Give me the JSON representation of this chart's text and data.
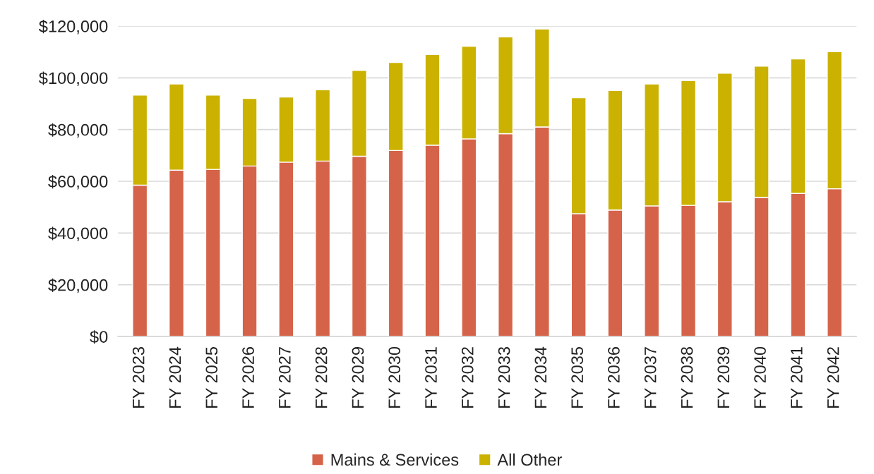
{
  "chart_data": {
    "type": "bar",
    "stacked": true,
    "categories": [
      "FY 2023",
      "FY 2024",
      "FY 2025",
      "FY 2026",
      "FY 2027",
      "FY 2028",
      "FY 2029",
      "FY 2030",
      "FY 2031",
      "FY 2032",
      "FY 2033",
      "FY 2034",
      "FY 2035",
      "FY 2036",
      "FY 2037",
      "FY 2038",
      "FY 2039",
      "FY 2040",
      "FY 2041",
      "FY 2042"
    ],
    "series": [
      {
        "name": "Mains & Services",
        "color": "#d5634a",
        "values": [
          58500,
          64300,
          64600,
          65900,
          67400,
          67800,
          69700,
          71900,
          74000,
          76400,
          78400,
          81000,
          47500,
          48900,
          50500,
          50700,
          52100,
          53800,
          55300,
          57100
        ]
      },
      {
        "name": "All Other",
        "color": "#cbb100",
        "values": [
          34800,
          33300,
          28700,
          26100,
          25200,
          27600,
          33200,
          34000,
          35000,
          35800,
          37400,
          37900,
          44800,
          46200,
          47100,
          48200,
          49700,
          50700,
          52000,
          53000
        ]
      }
    ],
    "ylim": [
      0,
      120000
    ],
    "yticks": [
      {
        "value": 0,
        "label": "$0"
      },
      {
        "value": 20000,
        "label": "$20,000"
      },
      {
        "value": 40000,
        "label": "$40,000"
      },
      {
        "value": 60000,
        "label": "$60,000"
      },
      {
        "value": 80000,
        "label": "$80,000"
      },
      {
        "value": 100000,
        "label": "$100,000"
      },
      {
        "value": 120000,
        "label": "$120,000"
      }
    ],
    "grid": "y",
    "legend": "bottom"
  }
}
